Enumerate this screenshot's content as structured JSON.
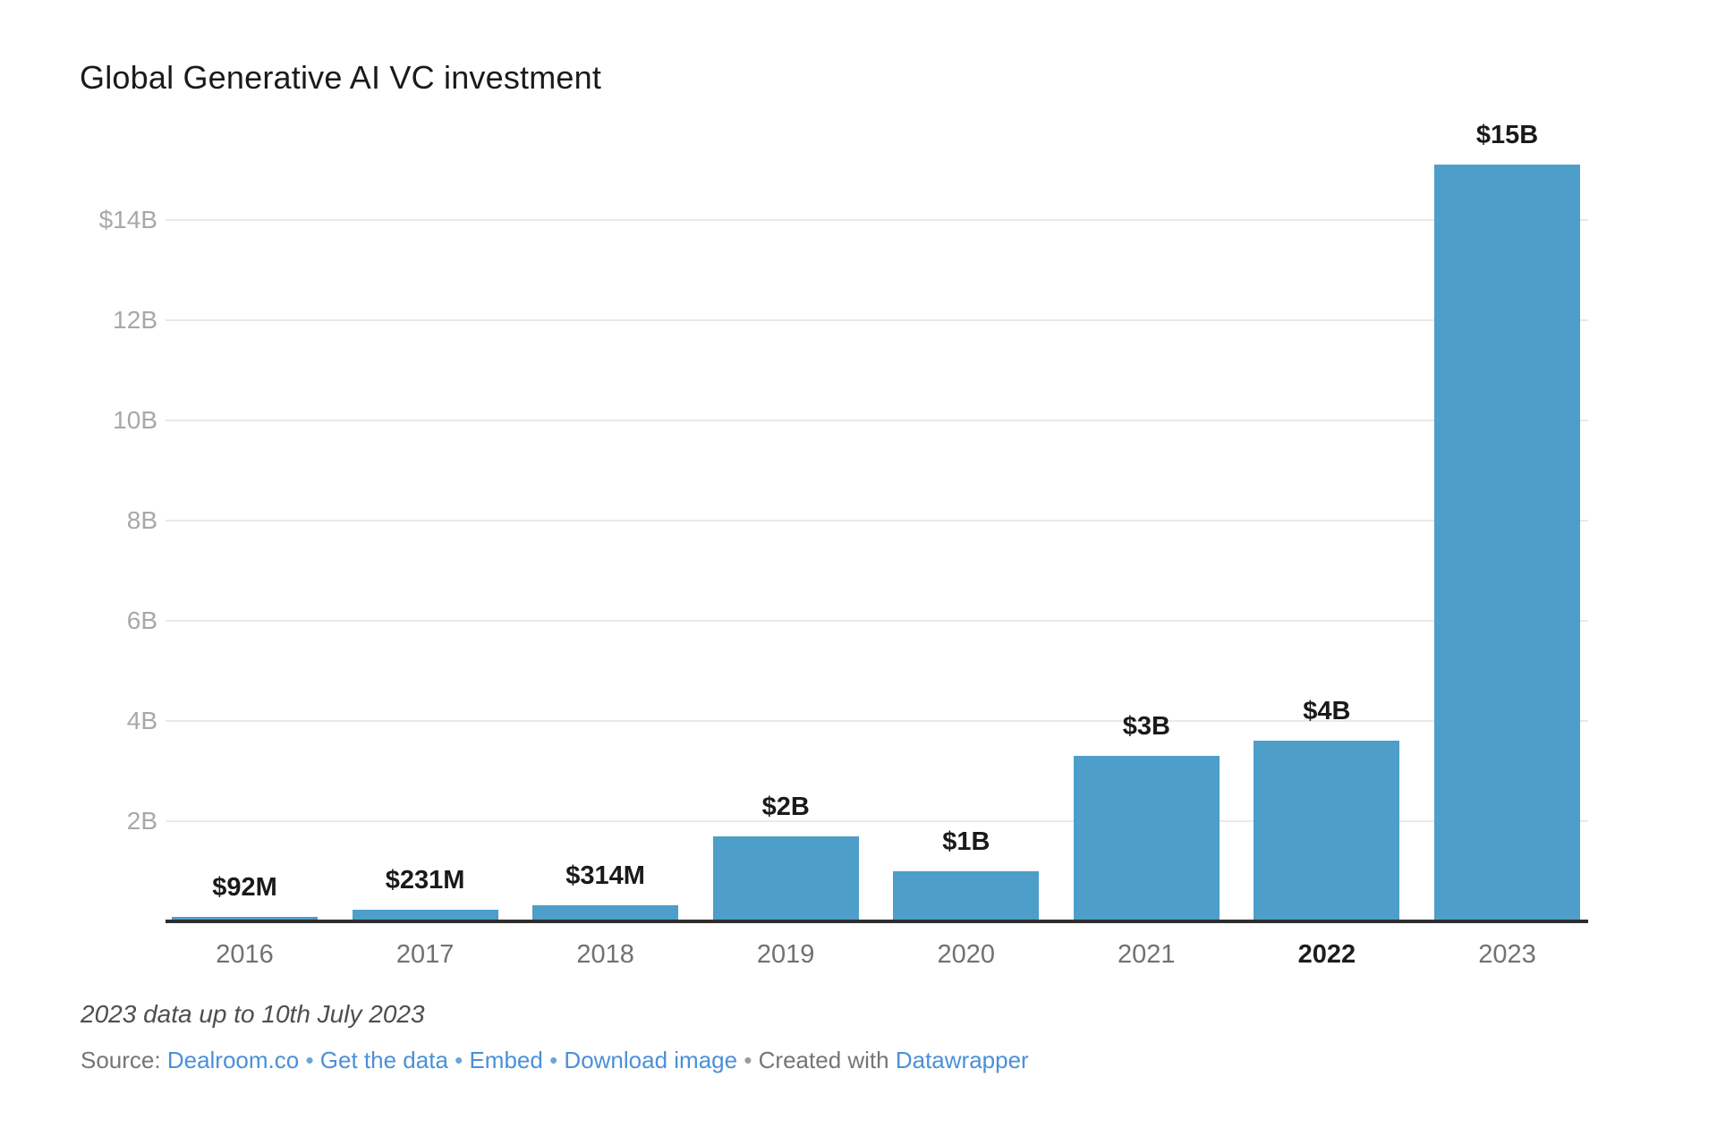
{
  "chart_data": {
    "type": "bar",
    "title": "Global Generative AI VC investment",
    "unit": "USD billions",
    "categories": [
      "2016",
      "2017",
      "2018",
      "2019",
      "2020",
      "2021",
      "2022",
      "2023"
    ],
    "values": [
      0.092,
      0.231,
      0.314,
      1.7,
      1.0,
      3.3,
      3.6,
      15.1
    ],
    "value_labels": [
      "$92M",
      "$231M",
      "$314M",
      "$2B",
      "$1B",
      "$3B",
      "$4B",
      "$15B"
    ],
    "bold_category": "2022",
    "y_ticks": [
      {
        "value": 2,
        "label": "2B"
      },
      {
        "value": 4,
        "label": "4B"
      },
      {
        "value": 6,
        "label": "6B"
      },
      {
        "value": 8,
        "label": "8B"
      },
      {
        "value": 10,
        "label": "10B"
      },
      {
        "value": 12,
        "label": "12B"
      },
      {
        "value": 14,
        "label": "$14B"
      }
    ],
    "ylim": [
      0,
      15.5
    ],
    "grid": true,
    "legend": "none",
    "bar_color": "#4d9ec9"
  },
  "footer": {
    "note": "2023 data up to 10th July 2023",
    "source_segments": [
      {
        "text": "Source: ",
        "style": "gray",
        "name": "source-prefix"
      },
      {
        "text": "Dealroom.co",
        "style": "link",
        "name": "source-link-dealroom"
      },
      {
        "text": " • ",
        "style": "sep-blue",
        "name": "separator-dot"
      },
      {
        "text": "Get the data",
        "style": "link",
        "name": "get-the-data-link"
      },
      {
        "text": " • ",
        "style": "sep-blue",
        "name": "separator-dot"
      },
      {
        "text": "Embed",
        "style": "link",
        "name": "embed-link"
      },
      {
        "text": " • ",
        "style": "sep-blue",
        "name": "separator-dot"
      },
      {
        "text": "Download image",
        "style": "link",
        "name": "download-image-link"
      },
      {
        "text": " • ",
        "style": "sep-gray",
        "name": "separator-dot"
      },
      {
        "text": "Created with ",
        "style": "gray",
        "name": "created-with-text"
      },
      {
        "text": "Datawrapper",
        "style": "link",
        "name": "datawrapper-link"
      }
    ]
  },
  "colors": {
    "bar": "#4d9ec9",
    "axis": "#2e2e2e",
    "gridline": "#e9e9e9",
    "y_label": "#a8a8a8",
    "x_label": "#717171",
    "x_label_bold": "#1d1d1d",
    "value_label": "#1a1a1a",
    "title": "#1a1a1a",
    "note": "#4e4e4e",
    "source_text": "#757575",
    "link": "#4a90d9"
  }
}
